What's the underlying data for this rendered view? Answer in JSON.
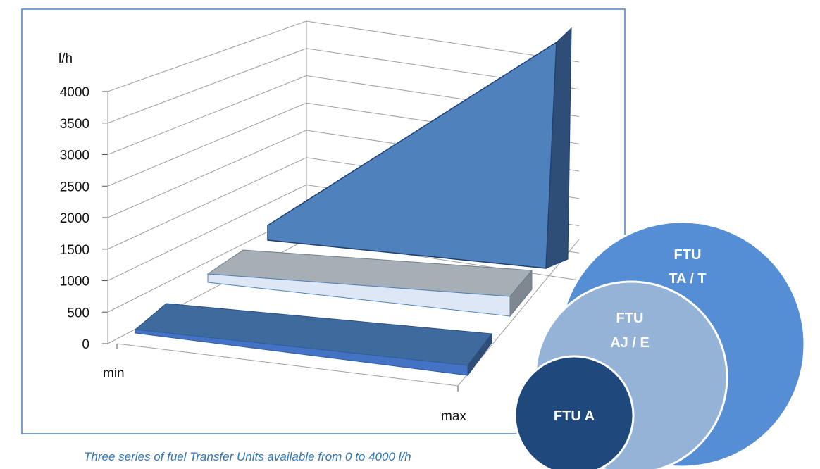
{
  "chart_data": {
    "type": "area",
    "ylabel": "l/h",
    "y_ticks": [
      "4000",
      "3500",
      "3000",
      "2500",
      "2000",
      "1500",
      "1000",
      "500",
      "0"
    ],
    "x_ticks": [
      "min",
      "max"
    ],
    "ylim": [
      0,
      4000
    ],
    "grid": true,
    "series": [
      {
        "name": "FTU A",
        "min": 0,
        "max": 0,
        "color": "#4472C4"
      },
      {
        "name": "FTU AJ / E",
        "min": 0,
        "max": 0,
        "color": "#DDE7F5"
      },
      {
        "name": "FTU TA / T",
        "min": 0,
        "max": 4000,
        "color": "#4F81BD"
      }
    ]
  },
  "caption": "Three series of fuel Transfer Units available from 0 to 4000 l/h",
  "venn": {
    "large": {
      "line1": "FTU",
      "line2": "TA / T",
      "color": "#558ED5"
    },
    "medium": {
      "line1": "FTU",
      "line2": "AJ / E",
      "color": "#95B3D7"
    },
    "small": {
      "label": "FTU A",
      "color": "#1F497D"
    }
  }
}
